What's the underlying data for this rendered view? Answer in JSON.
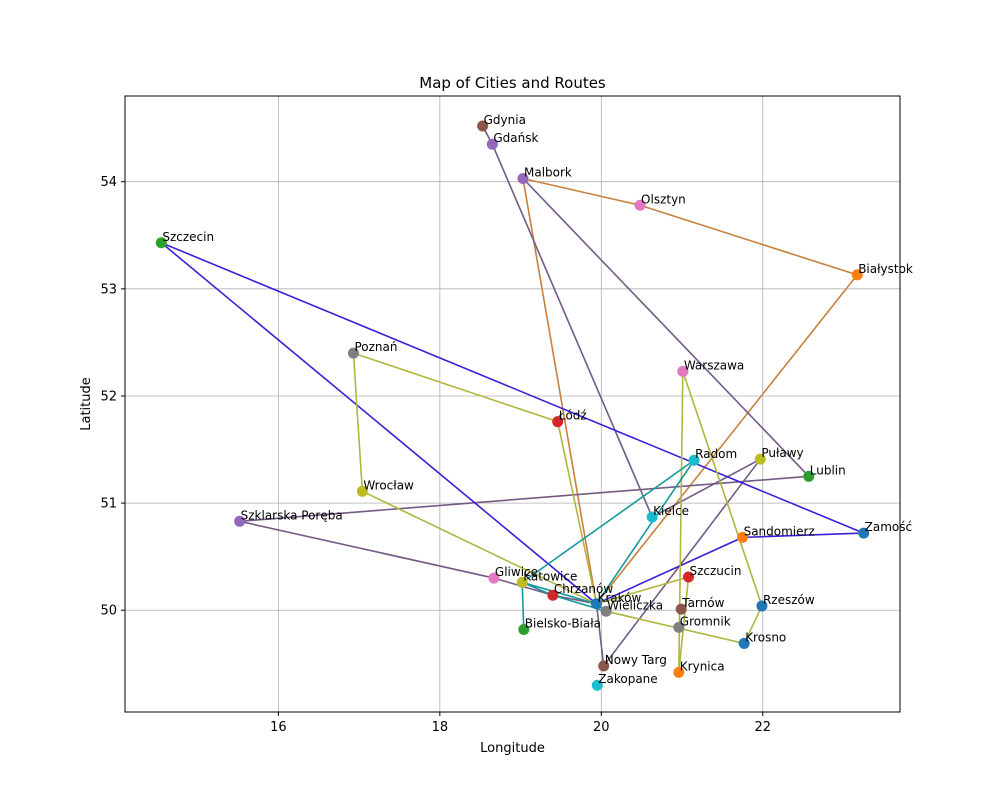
{
  "chart_data": {
    "type": "scatter",
    "title": "Map of Cities and Routes",
    "xlabel": "Longitude",
    "ylabel": "Latitude",
    "xlim": [
      14.1,
      23.7
    ],
    "ylim": [
      49.05,
      54.8
    ],
    "xticks": [
      16,
      18,
      20,
      22
    ],
    "yticks": [
      50,
      51,
      52,
      53,
      54
    ],
    "grid": true,
    "cities": [
      {
        "name": "Gdynia",
        "x": 18.53,
        "y": 54.52,
        "color": "#8c564b"
      },
      {
        "name": "Gdańsk",
        "x": 18.65,
        "y": 54.35,
        "color": "#9467bd"
      },
      {
        "name": "Malbork",
        "x": 19.03,
        "y": 54.03,
        "color": "#9467bd"
      },
      {
        "name": "Olsztyn",
        "x": 20.48,
        "y": 53.78,
        "color": "#e377c2"
      },
      {
        "name": "Szczecin",
        "x": 14.55,
        "y": 53.43,
        "color": "#2ca02c"
      },
      {
        "name": "Białystok",
        "x": 23.17,
        "y": 53.13,
        "color": "#ff7f0e"
      },
      {
        "name": "Poznań",
        "x": 16.93,
        "y": 52.4,
        "color": "#7f7f7f"
      },
      {
        "name": "Warszawa",
        "x": 21.01,
        "y": 52.23,
        "color": "#e377c2"
      },
      {
        "name": "Łódź",
        "x": 19.46,
        "y": 51.76,
        "color": "#d62728"
      },
      {
        "name": "Radom",
        "x": 21.15,
        "y": 51.4,
        "color": "#17becf"
      },
      {
        "name": "Puławy",
        "x": 21.97,
        "y": 51.41,
        "color": "#bcbd22"
      },
      {
        "name": "Lublin",
        "x": 22.57,
        "y": 51.25,
        "color": "#2ca02c"
      },
      {
        "name": "Wrocław",
        "x": 17.04,
        "y": 51.11,
        "color": "#bcbd22"
      },
      {
        "name": "Kielce",
        "x": 20.63,
        "y": 50.87,
        "color": "#17becf"
      },
      {
        "name": "Szklarska Poręba",
        "x": 15.52,
        "y": 50.83,
        "color": "#9467bd"
      },
      {
        "name": "Zamość",
        "x": 23.25,
        "y": 50.72,
        "color": "#1f77b4"
      },
      {
        "name": "Sandomierz",
        "x": 21.75,
        "y": 50.68,
        "color": "#ff7f0e"
      },
      {
        "name": "Szczucin",
        "x": 21.08,
        "y": 50.31,
        "color": "#d62728"
      },
      {
        "name": "Gliwice",
        "x": 18.67,
        "y": 50.3,
        "color": "#e377c2"
      },
      {
        "name": "Katowice",
        "x": 19.02,
        "y": 50.26,
        "color": "#bcbd22"
      },
      {
        "name": "Chrzanów",
        "x": 19.4,
        "y": 50.14,
        "color": "#d62728"
      },
      {
        "name": "Kraków",
        "x": 19.94,
        "y": 50.06,
        "color": "#1f77b4"
      },
      {
        "name": "Rzeszów",
        "x": 21.99,
        "y": 50.04,
        "color": "#1f77b4"
      },
      {
        "name": "Tarnów",
        "x": 20.99,
        "y": 50.01,
        "color": "#8c564b"
      },
      {
        "name": "Wieliczka",
        "x": 20.06,
        "y": 49.99,
        "color": "#7f7f7f"
      },
      {
        "name": "Gromnik",
        "x": 20.96,
        "y": 49.84,
        "color": "#7f7f7f"
      },
      {
        "name": "Bielsko-Biała",
        "x": 19.04,
        "y": 49.82,
        "color": "#2ca02c"
      },
      {
        "name": "Krosno",
        "x": 21.77,
        "y": 49.69,
        "color": "#1f77b4"
      },
      {
        "name": "Nowy Targ",
        "x": 20.03,
        "y": 49.48,
        "color": "#8c564b"
      },
      {
        "name": "Krynica",
        "x": 20.96,
        "y": 49.42,
        "color": "#ff7f0e"
      },
      {
        "name": "Zakopane",
        "x": 19.95,
        "y": 49.3,
        "color": "#17becf"
      }
    ],
    "routes": [
      {
        "color": "#c8803c",
        "stops": [
          "Kraków",
          "Malbork",
          "Olsztyn",
          "Białystok",
          "Kraków"
        ]
      },
      {
        "color": "#745a85",
        "stops": [
          "Gdynia",
          "Gdańsk",
          "Kielce",
          "Puławy",
          "Nowy Targ",
          "Kraków"
        ]
      },
      {
        "color": "#745a85",
        "stops": [
          "Malbork",
          "Lublin",
          "Szklarska Poręba",
          "Gliwice",
          "Chrzanów",
          "Kraków"
        ]
      },
      {
        "color": "#3a1fd8",
        "stops": [
          "Kraków",
          "Szczecin",
          "Zamość",
          "Sandomierz",
          "Kraków"
        ]
      },
      {
        "color": "#b2b53e",
        "stops": [
          "Kraków",
          "Wrocław",
          "Poznań",
          "Łódź",
          "Kraków"
        ]
      },
      {
        "color": "#b2b53e",
        "stops": [
          "Kraków",
          "Szczucin",
          "Krynica",
          "Warszawa",
          "Rzeszów",
          "Krosno",
          "Wieliczka",
          "Kraków"
        ]
      },
      {
        "color": "#17999c",
        "stops": [
          "Katowice",
          "Radom",
          "Kraków",
          "Wieliczka",
          "Chrzanów",
          "Katowice",
          "Bielsko-Biała",
          "Katowice",
          "Kraków"
        ]
      }
    ]
  }
}
